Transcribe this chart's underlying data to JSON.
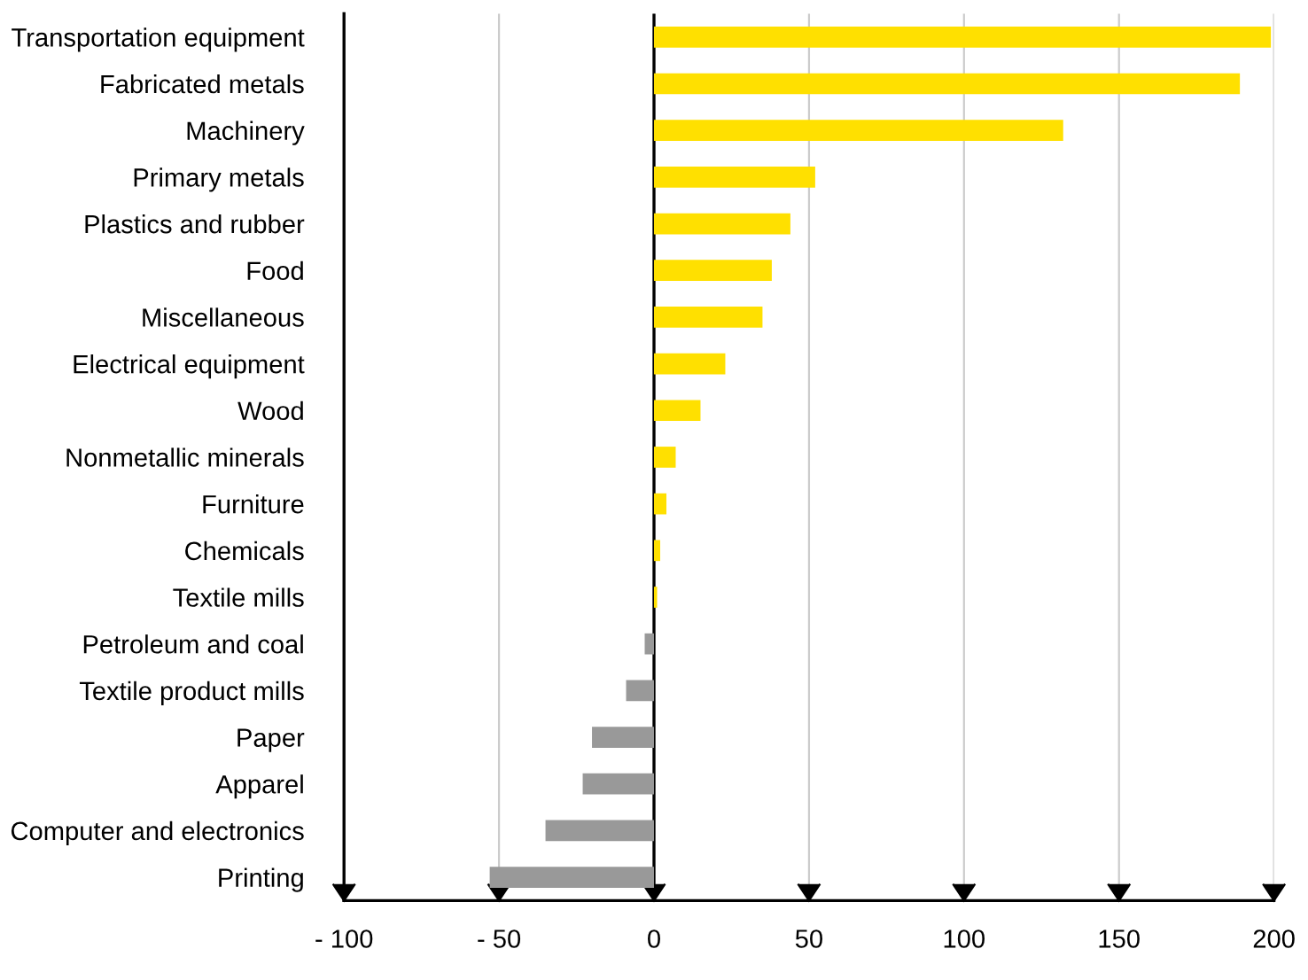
{
  "chart_data": {
    "type": "bar",
    "orientation": "horizontal",
    "categories": [
      "Transportation equipment",
      "Fabricated metals",
      "Machinery",
      "Primary metals",
      "Plastics and rubber",
      "Food",
      "Miscellaneous",
      "Electrical equipment",
      "Wood",
      "Nonmetallic minerals",
      "Furniture",
      "Chemicals",
      "Textile mills",
      "Petroleum and coal",
      "Textile product mills",
      "Paper",
      "Apparel",
      "Computer and electronics",
      "Printing"
    ],
    "values": [
      199,
      189,
      132,
      52,
      44,
      38,
      35,
      23,
      15,
      7,
      4,
      2,
      1,
      -3,
      -9,
      -20,
      -23,
      -35,
      -53
    ],
    "colors": [
      "#ffe000",
      "#ffe000",
      "#ffe000",
      "#ffe000",
      "#ffe000",
      "#ffe000",
      "#ffe000",
      "#ffe000",
      "#ffe000",
      "#ffe000",
      "#ffe000",
      "#ffe000",
      "#ffe000",
      "#999999",
      "#999999",
      "#999999",
      "#999999",
      "#999999",
      "#999999"
    ],
    "xlim": [
      -100,
      200
    ],
    "xticks": [
      {
        "value": -100,
        "label": "- 100"
      },
      {
        "value": -50,
        "label": "- 50"
      },
      0,
      50,
      100,
      150,
      200
    ],
    "grid": "x",
    "ref_lines": [
      {
        "axis": "x",
        "value": 0,
        "color": "#000000"
      }
    ]
  }
}
